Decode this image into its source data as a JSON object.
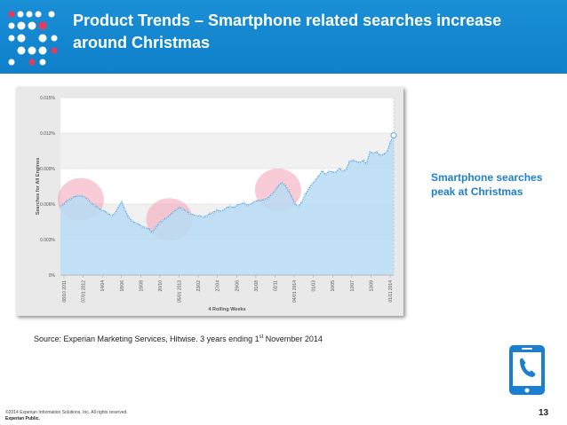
{
  "header": {
    "title": "Product Trends – Smartphone related searches increase around Christmas"
  },
  "callout": {
    "text": "Smartphone searches peak at Christmas"
  },
  "source": {
    "text_before": "Source: Experian Marketing Services, Hitwise. 3 years ending 1",
    "superscript": "st",
    "text_after": " November 2014"
  },
  "footer": {
    "copyright": "©2014 Experian Information Solutions, Inc. All rights reserved.",
    "classification": "Experian Public.",
    "page_number": "13"
  },
  "icons": {
    "logo": "experian-dots-logo-icon",
    "phone": "smartphone-call-icon"
  },
  "colors": {
    "header_blue": "#1580cc",
    "area_fill": "#b9dcf5",
    "line": "#5aa9e0",
    "highlight": "#f2a1b7",
    "callout": "#1f7fcf",
    "phone_blue": "#1a7fd0"
  },
  "chart_data": {
    "type": "area",
    "ylabel": "Searches for All Engines",
    "xlabel": "4 Rolling Weeks",
    "ylim": [
      0,
      0.015
    ],
    "y_ticks": [
      "0%",
      "0.003%",
      "0.006%",
      "0.009%",
      "0.012%",
      "0.015%"
    ],
    "x_ticks": [
      "08/10 2011",
      "07/01 2012",
      "14/04",
      "18/06",
      "19/08",
      "20/10",
      "05/01 2013",
      "23/02",
      "27/04",
      "29/06",
      "31/08",
      "02/11",
      "04/01 2014",
      "01/03",
      "10/05",
      "12/07",
      "13/09",
      "01/11 2014"
    ],
    "series": [
      {
        "values": [
          0.0058,
          0.006,
          0.0063,
          0.0064,
          0.0066,
          0.0067,
          0.0067,
          0.0066,
          0.0064,
          0.0061,
          0.0059,
          0.0057,
          0.0055,
          0.0054,
          0.0052,
          0.005,
          0.0052,
          0.0057,
          0.0062,
          0.0055,
          0.0049,
          0.0046,
          0.0044,
          0.0043,
          0.0041,
          0.004,
          0.0039,
          0.0036,
          0.004,
          0.0044,
          0.0046,
          0.0048,
          0.005,
          0.0053,
          0.0055,
          0.0057,
          0.0056,
          0.0054,
          0.0052,
          0.0051,
          0.005,
          0.005,
          0.0049,
          0.005,
          0.0052,
          0.0053,
          0.0055,
          0.0054,
          0.0055,
          0.0057,
          0.0058,
          0.0057,
          0.0059,
          0.006,
          0.0061,
          0.0059,
          0.006,
          0.0062,
          0.0063,
          0.0063,
          0.0064,
          0.0065,
          0.0068,
          0.0071,
          0.0075,
          0.0078,
          0.0076,
          0.0072,
          0.0066,
          0.006,
          0.0058,
          0.0062,
          0.0068,
          0.0073,
          0.0077,
          0.008,
          0.0084,
          0.0088,
          0.0085,
          0.0088,
          0.0087,
          0.0087,
          0.009,
          0.0088,
          0.0089,
          0.0096,
          0.0097,
          0.0096,
          0.0095,
          0.0097,
          0.0094,
          0.0104,
          0.0103,
          0.0104,
          0.0101,
          0.0102,
          0.0104,
          0.0112,
          0.0118
        ]
      }
    ],
    "highlights": [
      {
        "label": "Christmas 2011",
        "index": 6
      },
      {
        "label": "Christmas 2012",
        "index": 32
      },
      {
        "label": "Christmas 2013",
        "index": 64
      }
    ],
    "grid": true
  }
}
